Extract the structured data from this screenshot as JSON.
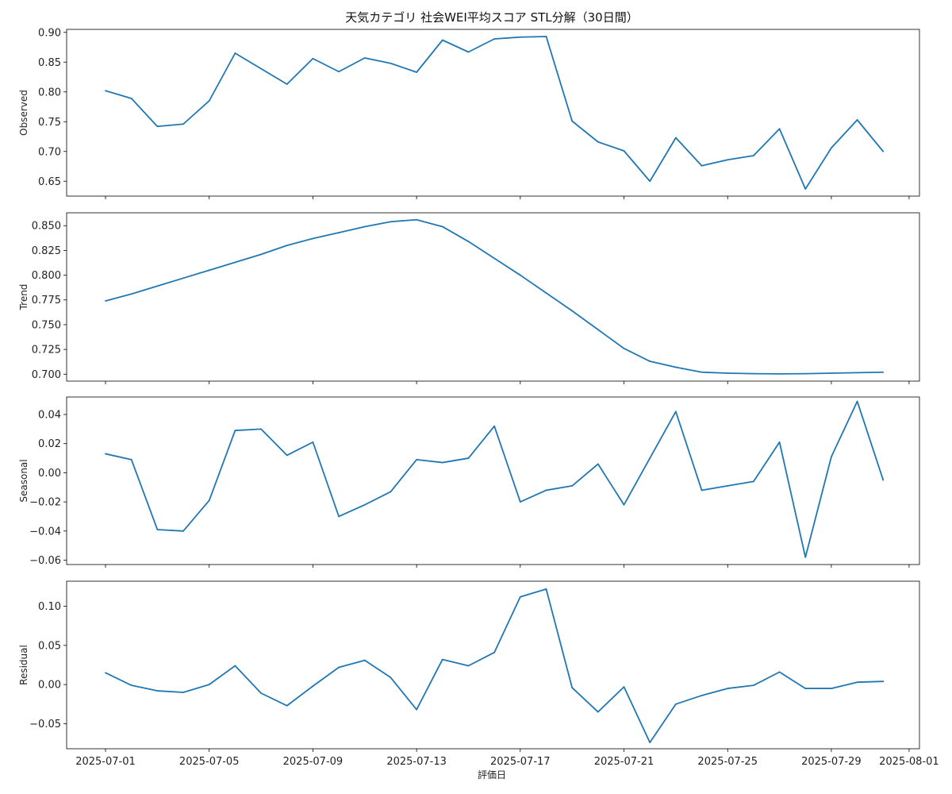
{
  "title": "天気カテゴリ 社会WEI平均スコア STL分解（30日間）",
  "xlabel": "評価日",
  "colors": {
    "line": "#1f77b4",
    "axis": "#000000"
  },
  "chart_data": [
    {
      "type": "line",
      "ylabel": "Observed",
      "ylim": [
        0.625,
        0.905
      ],
      "yticks": [
        "0.65",
        "0.70",
        "0.75",
        "0.80",
        "0.85",
        "0.90"
      ],
      "x": [
        "2025-07-01",
        "2025-07-02",
        "2025-07-03",
        "2025-07-04",
        "2025-07-05",
        "2025-07-06",
        "2025-07-07",
        "2025-07-08",
        "2025-07-09",
        "2025-07-10",
        "2025-07-11",
        "2025-07-12",
        "2025-07-13",
        "2025-07-14",
        "2025-07-15",
        "2025-07-16",
        "2025-07-17",
        "2025-07-18",
        "2025-07-19",
        "2025-07-20",
        "2025-07-21",
        "2025-07-22",
        "2025-07-23",
        "2025-07-24",
        "2025-07-25",
        "2025-07-26",
        "2025-07-27",
        "2025-07-28",
        "2025-07-29",
        "2025-07-30",
        "2025-07-31"
      ],
      "values": [
        0.802,
        0.789,
        0.742,
        0.746,
        0.785,
        0.865,
        0.839,
        0.813,
        0.856,
        0.834,
        0.857,
        0.848,
        0.833,
        0.887,
        0.867,
        0.889,
        0.892,
        0.893,
        0.751,
        0.716,
        0.701,
        0.65,
        0.723,
        0.676,
        0.686,
        0.693,
        0.738,
        0.637,
        0.706,
        0.753,
        0.7
      ]
    },
    {
      "type": "line",
      "ylabel": "Trend",
      "ylim": [
        0.693,
        0.863
      ],
      "yticks": [
        "0.700",
        "0.725",
        "0.750",
        "0.775",
        "0.800",
        "0.825",
        "0.850"
      ],
      "x": [
        "2025-07-01",
        "2025-07-02",
        "2025-07-03",
        "2025-07-04",
        "2025-07-05",
        "2025-07-06",
        "2025-07-07",
        "2025-07-08",
        "2025-07-09",
        "2025-07-10",
        "2025-07-11",
        "2025-07-12",
        "2025-07-13",
        "2025-07-14",
        "2025-07-15",
        "2025-07-16",
        "2025-07-17",
        "2025-07-18",
        "2025-07-19",
        "2025-07-20",
        "2025-07-21",
        "2025-07-22",
        "2025-07-23",
        "2025-07-24",
        "2025-07-25",
        "2025-07-26",
        "2025-07-27",
        "2025-07-28",
        "2025-07-29",
        "2025-07-30",
        "2025-07-31"
      ],
      "values": [
        0.774,
        0.781,
        0.789,
        0.797,
        0.805,
        0.813,
        0.821,
        0.83,
        0.837,
        0.843,
        0.849,
        0.854,
        0.856,
        0.849,
        0.834,
        0.817,
        0.8,
        0.782,
        0.764,
        0.745,
        0.726,
        0.713,
        0.707,
        0.702,
        0.701,
        0.7005,
        0.7003,
        0.7005,
        0.701,
        0.7015,
        0.702
      ]
    },
    {
      "type": "line",
      "ylabel": "Seasonal",
      "ylim": [
        -0.063,
        0.052
      ],
      "yticks": [
        "−0.06",
        "−0.04",
        "−0.02",
        "0.00",
        "0.02",
        "0.04"
      ],
      "x": [
        "2025-07-01",
        "2025-07-02",
        "2025-07-03",
        "2025-07-04",
        "2025-07-05",
        "2025-07-06",
        "2025-07-07",
        "2025-07-08",
        "2025-07-09",
        "2025-07-10",
        "2025-07-11",
        "2025-07-12",
        "2025-07-13",
        "2025-07-14",
        "2025-07-15",
        "2025-07-16",
        "2025-07-17",
        "2025-07-18",
        "2025-07-19",
        "2025-07-20",
        "2025-07-21",
        "2025-07-22",
        "2025-07-23",
        "2025-07-24",
        "2025-07-25",
        "2025-07-26",
        "2025-07-27",
        "2025-07-28",
        "2025-07-29",
        "2025-07-30",
        "2025-07-31"
      ],
      "values": [
        0.013,
        0.009,
        -0.039,
        -0.04,
        -0.019,
        0.029,
        0.03,
        0.012,
        0.021,
        -0.03,
        -0.022,
        -0.013,
        0.009,
        0.007,
        0.01,
        0.032,
        -0.02,
        -0.012,
        -0.009,
        0.006,
        -0.022,
        0.01,
        0.042,
        -0.012,
        -0.009,
        -0.006,
        0.021,
        -0.058,
        0.011,
        0.049,
        -0.005
      ]
    },
    {
      "type": "line",
      "ylabel": "Residual",
      "ylim": [
        -0.082,
        0.132
      ],
      "yticks": [
        "−0.05",
        "0.00",
        "0.05",
        "0.10"
      ],
      "x": [
        "2025-07-01",
        "2025-07-02",
        "2025-07-03",
        "2025-07-04",
        "2025-07-05",
        "2025-07-06",
        "2025-07-07",
        "2025-07-08",
        "2025-07-09",
        "2025-07-10",
        "2025-07-11",
        "2025-07-12",
        "2025-07-13",
        "2025-07-14",
        "2025-07-15",
        "2025-07-16",
        "2025-07-17",
        "2025-07-18",
        "2025-07-19",
        "2025-07-20",
        "2025-07-21",
        "2025-07-22",
        "2025-07-23",
        "2025-07-24",
        "2025-07-25",
        "2025-07-26",
        "2025-07-27",
        "2025-07-28",
        "2025-07-29",
        "2025-07-30",
        "2025-07-31"
      ],
      "values": [
        0.015,
        -0.001,
        -0.008,
        -0.01,
        0.0,
        0.024,
        -0.011,
        -0.027,
        -0.002,
        0.022,
        0.031,
        0.009,
        -0.032,
        0.032,
        0.024,
        0.041,
        0.112,
        0.122,
        -0.004,
        -0.035,
        -0.003,
        -0.074,
        -0.025,
        -0.014,
        -0.005,
        -0.001,
        0.016,
        -0.005,
        -0.005,
        0.003,
        0.004
      ]
    }
  ],
  "xaxis": {
    "ticks": [
      "2025-07-01",
      "2025-07-05",
      "2025-07-09",
      "2025-07-13",
      "2025-07-17",
      "2025-07-21",
      "2025-07-25",
      "2025-07-29",
      "2025-08-01"
    ]
  }
}
